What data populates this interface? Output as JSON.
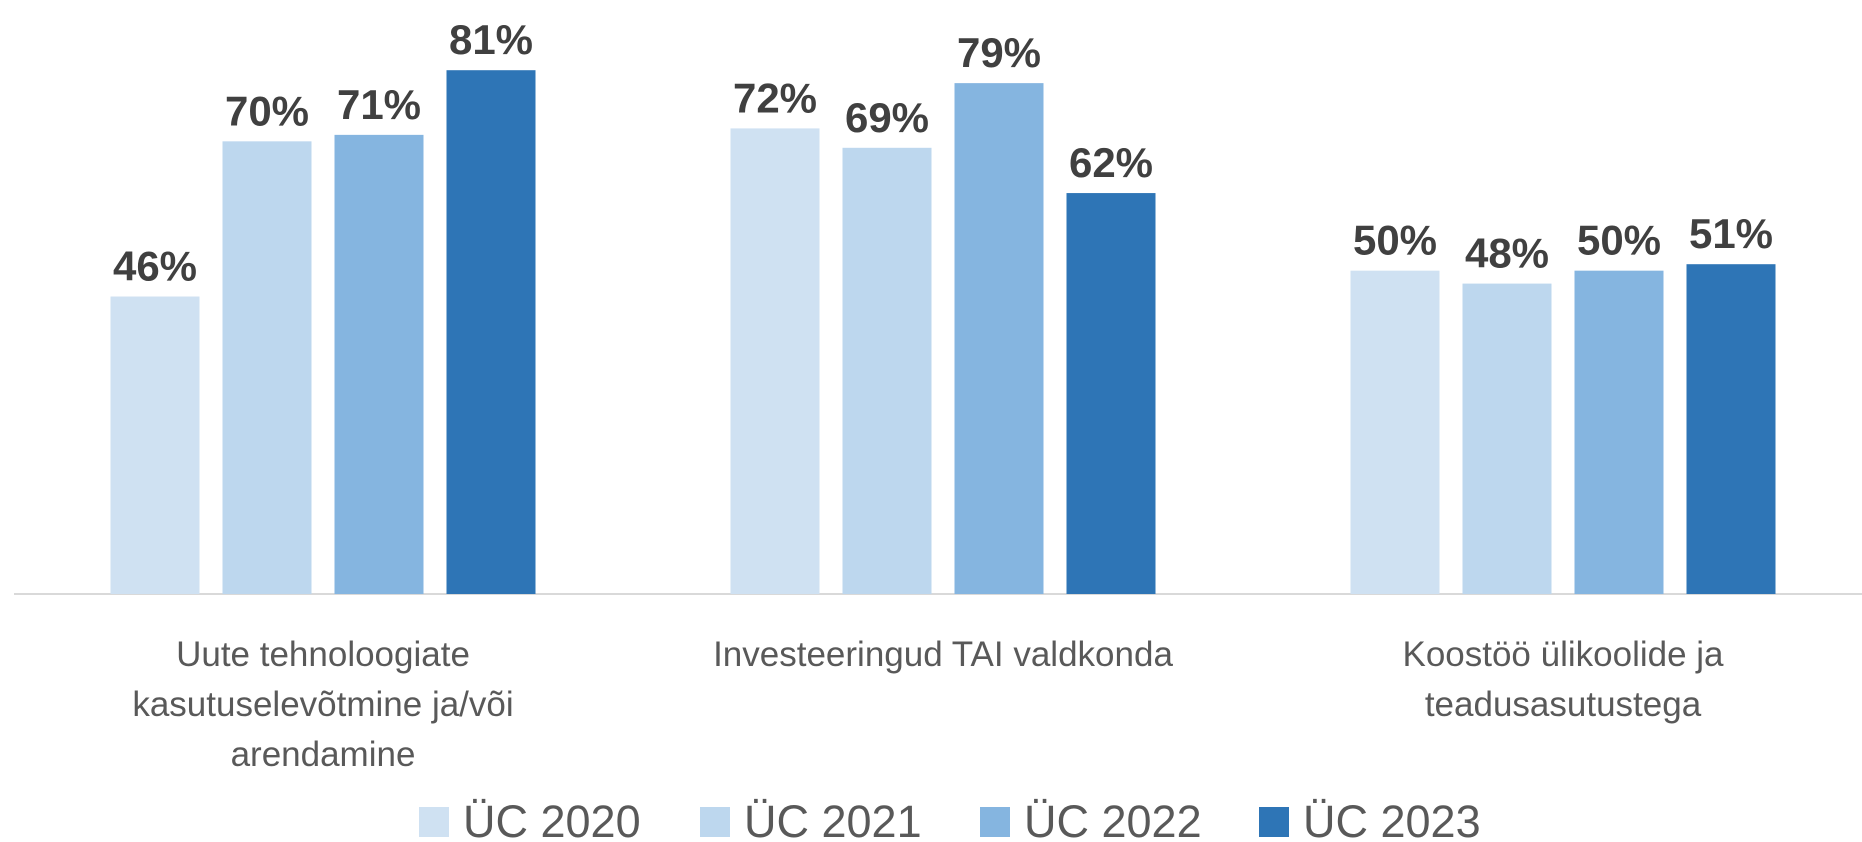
{
  "chart_data": {
    "type": "bar",
    "categories": [
      "Uute tehnoloogiate kasutuselevõtmine ja/või arendamine",
      "Investeeringud TAI valdkonda",
      "Koostöö ülikoolide ja teadusasutustega"
    ],
    "series": [
      {
        "name": "ÜC 2020",
        "color": "#cfe1f2",
        "values": [
          46,
          72,
          50
        ],
        "value_labels": [
          "46%",
          "72%",
          "50%"
        ]
      },
      {
        "name": "ÜC 2021",
        "color": "#bdd7ee",
        "values": [
          70,
          69,
          48
        ],
        "value_labels": [
          "70%",
          "69%",
          "48%"
        ]
      },
      {
        "name": "ÜC 2022",
        "color": "#85b5e0",
        "values": [
          71,
          79,
          50
        ],
        "value_labels": [
          "71%",
          "79%",
          "50%"
        ]
      },
      {
        "name": "ÜC 2023",
        "color": "#2e75b6",
        "values": [
          81,
          62,
          51
        ],
        "value_labels": [
          "81%",
          "62%",
          "51%"
        ]
      }
    ],
    "ylim": [
      0,
      90
    ],
    "legend": "bottom"
  }
}
